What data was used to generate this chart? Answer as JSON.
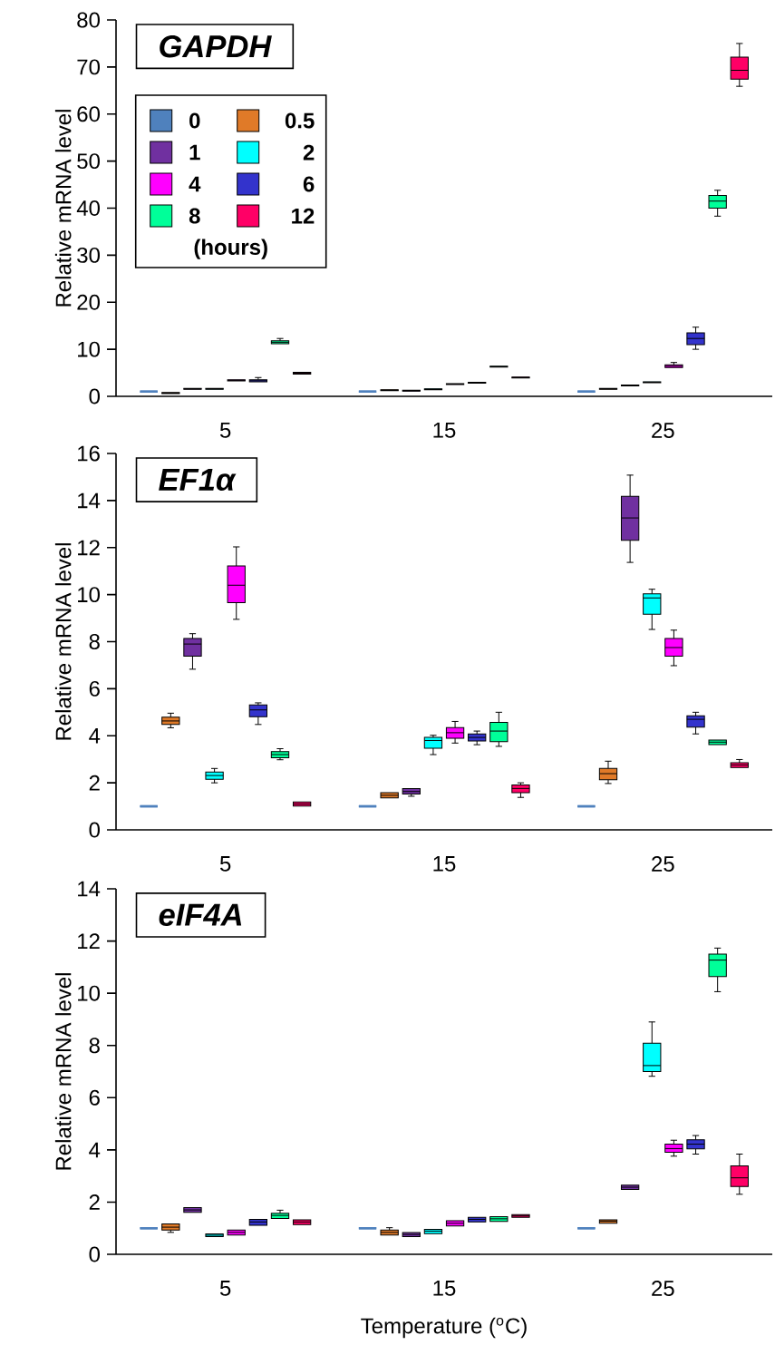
{
  "chart_data": [
    {
      "type": "box",
      "title": "GAPDH",
      "ylabel": "Relative mRNA level",
      "categories": [
        "5",
        "15",
        "25"
      ],
      "ylim": [
        0,
        80
      ],
      "yticks": [
        0,
        10,
        20,
        30,
        40,
        50,
        60,
        70,
        80
      ],
      "legend": "top left",
      "legend_title": "(hours)",
      "series": [
        {
          "name": "0",
          "color": "#4f81bd",
          "boxes": [
            {
              "low": 1,
              "q1": 1,
              "median": 1,
              "q3": 1,
              "high": 1
            },
            {
              "low": 1,
              "q1": 1,
              "median": 1,
              "q3": 1,
              "high": 1
            },
            {
              "low": 1,
              "q1": 1,
              "median": 1,
              "q3": 1,
              "high": 1
            }
          ]
        },
        {
          "name": "0.5",
          "color": "#e07a28",
          "boxes": [
            {
              "low": 0.6,
              "q1": 0.6,
              "median": 0.7,
              "q3": 0.8,
              "high": 0.8
            },
            {
              "low": 1.2,
              "q1": 1.2,
              "median": 1.3,
              "q3": 1.4,
              "high": 1.4
            },
            {
              "low": 1.5,
              "q1": 1.5,
              "median": 1.6,
              "q3": 1.7,
              "high": 1.7
            }
          ]
        },
        {
          "name": "1",
          "color": "#7030a0",
          "boxes": [
            {
              "low": 1.5,
              "q1": 1.5,
              "median": 1.6,
              "q3": 1.7,
              "high": 1.7
            },
            {
              "low": 1.1,
              "q1": 1.1,
              "median": 1.2,
              "q3": 1.3,
              "high": 1.3
            },
            {
              "low": 2.2,
              "q1": 2.2,
              "median": 2.3,
              "q3": 2.4,
              "high": 2.4
            }
          ]
        },
        {
          "name": "2",
          "color": "#00ffff",
          "boxes": [
            {
              "low": 1.5,
              "q1": 1.5,
              "median": 1.6,
              "q3": 1.7,
              "high": 1.7
            },
            {
              "low": 1.4,
              "q1": 1.4,
              "median": 1.5,
              "q3": 1.6,
              "high": 1.6
            },
            {
              "low": 2.9,
              "q1": 2.9,
              "median": 3.0,
              "q3": 3.1,
              "high": 3.1
            }
          ]
        },
        {
          "name": "4",
          "color": "#ff00ff",
          "boxes": [
            {
              "low": 3.3,
              "q1": 3.3,
              "median": 3.4,
              "q3": 3.5,
              "high": 3.5
            },
            {
              "low": 2.5,
              "q1": 2.5,
              "median": 2.6,
              "q3": 2.7,
              "high": 2.7
            },
            {
              "low": 6.1,
              "q1": 6.1,
              "median": 6.4,
              "q3": 6.7,
              "high": 7.2
            }
          ]
        },
        {
          "name": "6",
          "color": "#3333cc",
          "boxes": [
            {
              "low": 3.1,
              "q1": 3.1,
              "median": 3.3,
              "q3": 3.5,
              "high": 4.0
            },
            {
              "low": 2.8,
              "q1": 2.8,
              "median": 2.9,
              "q3": 3.0,
              "high": 3.0
            },
            {
              "low": 10.0,
              "q1": 11.0,
              "median": 12.3,
              "q3": 13.5,
              "high": 14.7
            }
          ]
        },
        {
          "name": "8",
          "color": "#00ff99",
          "boxes": [
            {
              "low": 11.2,
              "q1": 11.2,
              "median": 11.5,
              "q3": 11.8,
              "high": 12.3
            },
            {
              "low": 6.2,
              "q1": 6.2,
              "median": 6.3,
              "q3": 6.4,
              "high": 6.4
            },
            {
              "low": 38.3,
              "q1": 40.0,
              "median": 41.5,
              "q3": 42.7,
              "high": 43.8
            }
          ]
        },
        {
          "name": "12",
          "color": "#ff0066",
          "boxes": [
            {
              "low": 4.7,
              "q1": 4.7,
              "median": 4.9,
              "q3": 5.1,
              "high": 5.1
            },
            {
              "low": 3.9,
              "q1": 3.9,
              "median": 4.0,
              "q3": 4.1,
              "high": 4.1
            },
            {
              "low": 65.9,
              "q1": 67.4,
              "median": 69.3,
              "q3": 72.1,
              "high": 75.0
            }
          ]
        }
      ]
    },
    {
      "type": "box",
      "title": "EF1α",
      "ylabel": "Relative mRNA level",
      "categories": [
        "5",
        "15",
        "25"
      ],
      "ylim": [
        0,
        16
      ],
      "yticks": [
        0,
        2,
        4,
        6,
        8,
        10,
        12,
        14,
        16
      ],
      "series": [
        {
          "color": "#4f81bd",
          "boxes": [
            {
              "low": 1,
              "q1": 1,
              "median": 1,
              "q3": 1,
              "high": 1
            },
            {
              "low": 1,
              "q1": 1,
              "median": 1,
              "q3": 1,
              "high": 1
            },
            {
              "low": 1,
              "q1": 1,
              "median": 1,
              "q3": 1,
              "high": 1
            }
          ]
        },
        {
          "color": "#e07a28",
          "boxes": [
            {
              "low": 4.34,
              "q1": 4.48,
              "median": 4.63,
              "q3": 4.79,
              "high": 4.96
            },
            {
              "low": 1.36,
              "q1": 1.36,
              "median": 1.47,
              "q3": 1.58,
              "high": 1.58
            },
            {
              "low": 1.97,
              "q1": 2.13,
              "median": 2.39,
              "q3": 2.61,
              "high": 2.92
            }
          ]
        },
        {
          "color": "#7030a0",
          "boxes": [
            {
              "low": 6.83,
              "q1": 7.38,
              "median": 7.9,
              "q3": 8.14,
              "high": 8.34
            },
            {
              "low": 1.43,
              "q1": 1.52,
              "median": 1.63,
              "q3": 1.75,
              "high": 1.75
            },
            {
              "low": 11.37,
              "q1": 12.31,
              "median": 13.26,
              "q3": 14.18,
              "high": 15.08
            }
          ]
        },
        {
          "color": "#00ffff",
          "boxes": [
            {
              "low": 2.0,
              "q1": 2.15,
              "median": 2.31,
              "q3": 2.46,
              "high": 2.61
            },
            {
              "low": 3.2,
              "q1": 3.47,
              "median": 3.8,
              "q3": 3.93,
              "high": 4.02
            },
            {
              "low": 8.52,
              "q1": 9.17,
              "median": 9.86,
              "q3": 10.03,
              "high": 10.23
            }
          ]
        },
        {
          "color": "#ff00ff",
          "boxes": [
            {
              "low": 8.95,
              "q1": 9.66,
              "median": 10.4,
              "q3": 11.22,
              "high": 12.03
            },
            {
              "low": 3.69,
              "q1": 3.89,
              "median": 4.13,
              "q3": 4.35,
              "high": 4.61
            },
            {
              "low": 6.98,
              "q1": 7.38,
              "median": 7.75,
              "q3": 8.14,
              "high": 8.49
            }
          ]
        },
        {
          "color": "#3333cc",
          "boxes": [
            {
              "low": 4.48,
              "q1": 4.81,
              "median": 5.1,
              "q3": 5.31,
              "high": 5.4
            },
            {
              "low": 3.62,
              "q1": 3.78,
              "median": 3.93,
              "q3": 4.08,
              "high": 4.2
            },
            {
              "low": 4.08,
              "q1": 4.37,
              "median": 4.7,
              "q3": 4.85,
              "high": 5.0
            }
          ]
        },
        {
          "color": "#00ff99",
          "boxes": [
            {
              "low": 2.98,
              "q1": 3.07,
              "median": 3.2,
              "q3": 3.33,
              "high": 3.45
            },
            {
              "low": 3.55,
              "q1": 3.75,
              "median": 4.2,
              "q3": 4.57,
              "high": 5.0
            },
            {
              "low": 3.62,
              "q1": 3.62,
              "median": 3.73,
              "q3": 3.82,
              "high": 3.82
            }
          ]
        },
        {
          "color": "#ff0066",
          "boxes": [
            {
              "low": 1.01,
              "q1": 1.01,
              "median": 1.1,
              "q3": 1.19,
              "high": 1.19
            },
            {
              "low": 1.38,
              "q1": 1.58,
              "median": 1.76,
              "q3": 1.91,
              "high": 2.0
            },
            {
              "low": 2.65,
              "q1": 2.65,
              "median": 2.76,
              "q3": 2.85,
              "high": 2.99
            }
          ]
        }
      ]
    },
    {
      "type": "box",
      "title": "eIF4A",
      "ylabel": "Relative mRNA level",
      "xlabel": "Temperature ($^{o}$C)",
      "categories": [
        "5",
        "15",
        "25"
      ],
      "ylim": [
        0,
        14
      ],
      "yticks": [
        0,
        2,
        4,
        6,
        8,
        10,
        12,
        14
      ],
      "series": [
        {
          "color": "#4f81bd",
          "boxes": [
            {
              "low": 1,
              "q1": 1,
              "median": 1,
              "q3": 1,
              "high": 1
            },
            {
              "low": 1,
              "q1": 1,
              "median": 1,
              "q3": 1,
              "high": 1
            },
            {
              "low": 1,
              "q1": 1,
              "median": 1,
              "q3": 1,
              "high": 1
            }
          ]
        },
        {
          "color": "#e07a28",
          "boxes": [
            {
              "low": 0.84,
              "q1": 0.93,
              "median": 1.04,
              "q3": 1.16,
              "high": 1.16
            },
            {
              "low": 0.74,
              "q1": 0.74,
              "median": 0.84,
              "q3": 0.93,
              "high": 1.02
            },
            {
              "low": 1.19,
              "q1": 1.19,
              "median": 1.27,
              "q3": 1.32,
              "high": 1.32
            }
          ]
        },
        {
          "color": "#7030a0",
          "boxes": [
            {
              "low": 1.61,
              "q1": 1.61,
              "median": 1.7,
              "q3": 1.79,
              "high": 1.79
            },
            {
              "low": 0.68,
              "q1": 0.68,
              "median": 0.76,
              "q3": 0.83,
              "high": 0.83
            },
            {
              "low": 2.48,
              "q1": 2.48,
              "median": 2.57,
              "q3": 2.65,
              "high": 2.65
            }
          ]
        },
        {
          "color": "#00ffff",
          "boxes": [
            {
              "low": 0.68,
              "q1": 0.68,
              "median": 0.73,
              "q3": 0.78,
              "high": 0.78
            },
            {
              "low": 0.79,
              "q1": 0.79,
              "median": 0.89,
              "q3": 0.96,
              "high": 0.96
            },
            {
              "low": 6.82,
              "q1": 7.0,
              "median": 7.23,
              "q3": 8.09,
              "high": 8.9
            }
          ]
        },
        {
          "color": "#ff00ff",
          "boxes": [
            {
              "low": 0.74,
              "q1": 0.74,
              "median": 0.84,
              "q3": 0.93,
              "high": 0.93
            },
            {
              "low": 1.09,
              "q1": 1.09,
              "median": 1.19,
              "q3": 1.29,
              "high": 1.29
            },
            {
              "low": 3.76,
              "q1": 3.91,
              "median": 4.05,
              "q3": 4.22,
              "high": 4.37
            }
          ]
        },
        {
          "color": "#3333cc",
          "boxes": [
            {
              "low": 1.11,
              "q1": 1.11,
              "median": 1.24,
              "q3": 1.34,
              "high": 1.34
            },
            {
              "low": 1.24,
              "q1": 1.24,
              "median": 1.34,
              "q3": 1.42,
              "high": 1.42
            },
            {
              "low": 3.84,
              "q1": 4.04,
              "median": 4.22,
              "q3": 4.39,
              "high": 4.55
            }
          ]
        },
        {
          "color": "#00ff99",
          "boxes": [
            {
              "low": 1.37,
              "q1": 1.37,
              "median": 1.49,
              "q3": 1.57,
              "high": 1.69
            },
            {
              "low": 1.26,
              "q1": 1.26,
              "median": 1.36,
              "q3": 1.44,
              "high": 1.44
            },
            {
              "low": 10.06,
              "q1": 10.64,
              "median": 11.27,
              "q3": 11.5,
              "high": 11.73
            }
          ]
        },
        {
          "color": "#ff0066",
          "boxes": [
            {
              "low": 1.14,
              "q1": 1.14,
              "median": 1.24,
              "q3": 1.32,
              "high": 1.32
            },
            {
              "low": 1.42,
              "q1": 1.42,
              "median": 1.47,
              "q3": 1.52,
              "high": 1.52
            },
            {
              "low": 2.3,
              "q1": 2.6,
              "median": 2.93,
              "q3": 3.39,
              "high": 3.84
            }
          ]
        }
      ]
    }
  ]
}
